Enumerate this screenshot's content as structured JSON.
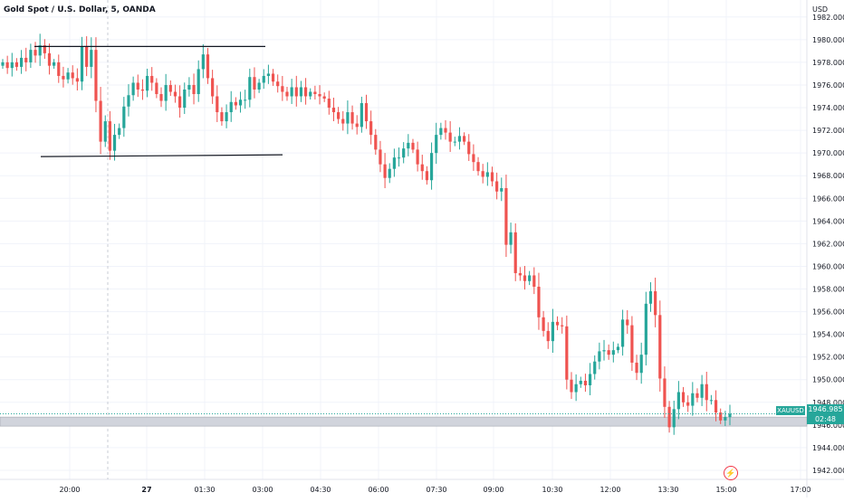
{
  "header": {
    "title": "Gold Spot / U.S. Dollar, 5, OANDA",
    "currency": "USD"
  },
  "price_box": {
    "symbol": "XAUUSD",
    "price": "1946.985",
    "countdown": "02:48"
  },
  "colors": {
    "up": "#26a69a",
    "down": "#ef5350",
    "grid": "#f0f3fa",
    "axis_text": "#131722",
    "zone": "#d1d4dc"
  },
  "icons": {
    "alert": "lightning-bolt-icon"
  },
  "chart_data": {
    "type": "candlestick",
    "symbol": "XAUUSD",
    "interval": "5",
    "x_tick_labels": [
      "20:00",
      "27",
      "01:30",
      "03:00",
      "04:30",
      "06:00",
      "07:30",
      "09:00",
      "10:30",
      "12:00",
      "13:30",
      "15:00",
      "17:00"
    ],
    "y_tick_labels": [
      "1942.000",
      "1944.000",
      "1946.000",
      "1948.000",
      "1950.000",
      "1952.000",
      "1954.000",
      "1956.000",
      "1958.000",
      "1960.000",
      "1962.000",
      "1964.000",
      "1966.000",
      "1968.000",
      "1970.000",
      "1972.000",
      "1974.000",
      "1976.000",
      "1978.000",
      "1980.000",
      "1982.000"
    ],
    "ylim": [
      1941.2,
      1983.5
    ],
    "grid": true,
    "last_price": 1946.985,
    "annotations": {
      "resistance_line": 1979.4,
      "support_line": 1969.6,
      "support_zone": [
        1945.9,
        1946.7
      ]
    },
    "candle_closes": [
      1978.0,
      1977.5,
      1978.0,
      1977.6,
      1978.4,
      1978.0,
      1979.1,
      1978.6,
      1979.5,
      1978.8,
      1977.7,
      1978.0,
      1976.8,
      1976.5,
      1977.1,
      1976.6,
      1976.3,
      1979.4,
      1977.6,
      1979.1,
      1974.6,
      1971.0,
      1972.8,
      1970.2,
      1971.6,
      1972.2,
      1974.1,
      1975.1,
      1976.2,
      1975.6,
      1975.5,
      1976.8,
      1976.2,
      1975.2,
      1974.6,
      1976.0,
      1975.4,
      1975.0,
      1974.0,
      1975.6,
      1976.0,
      1975.2,
      1977.4,
      1978.7,
      1976.6,
      1975.0,
      1973.6,
      1972.8,
      1973.6,
      1974.5,
      1974.2,
      1974.7,
      1974.7,
      1976.7,
      1975.6,
      1976.2,
      1976.8,
      1977.0,
      1976.3,
      1975.9,
      1975.4,
      1975.0,
      1975.8,
      1975.0,
      1975.8,
      1975.0,
      1975.4,
      1975.2,
      1975.0,
      1974.8,
      1974.0,
      1973.6,
      1973.0,
      1972.6,
      1973.6,
      1972.6,
      1972.3,
      1974.4,
      1972.8,
      1971.6,
      1970.3,
      1969.0,
      1967.8,
      1968.6,
      1969.6,
      1969.6,
      1970.4,
      1970.9,
      1970.3,
      1969.0,
      1968.4,
      1967.6,
      1970.0,
      1971.6,
      1972.2,
      1971.8,
      1971.0,
      1971.0,
      1971.5,
      1971.0,
      1969.9,
      1969.2,
      1968.4,
      1967.9,
      1968.3,
      1967.5,
      1966.6,
      1966.9,
      1961.9,
      1963.0,
      1959.4,
      1959.2,
      1958.7,
      1959.2,
      1958.2,
      1955.5,
      1954.3,
      1953.4,
      1955.1,
      1954.8,
      1954.7,
      1950.0,
      1948.9,
      1949.6,
      1949.9,
      1949.5,
      1950.5,
      1951.6,
      1952.5,
      1952.6,
      1952.2,
      1952.6,
      1952.9,
      1955.3,
      1954.8,
      1951.5,
      1950.6,
      1952.2,
      1956.7,
      1957.8,
      1955.7,
      1950.1,
      1947.6,
      1945.8,
      1947.4,
      1948.9,
      1948.0,
      1947.7,
      1948.8,
      1948.4,
      1949.6,
      1948.2,
      1948.2,
      1947.1,
      1946.4,
      1946.7,
      1946.985
    ]
  }
}
